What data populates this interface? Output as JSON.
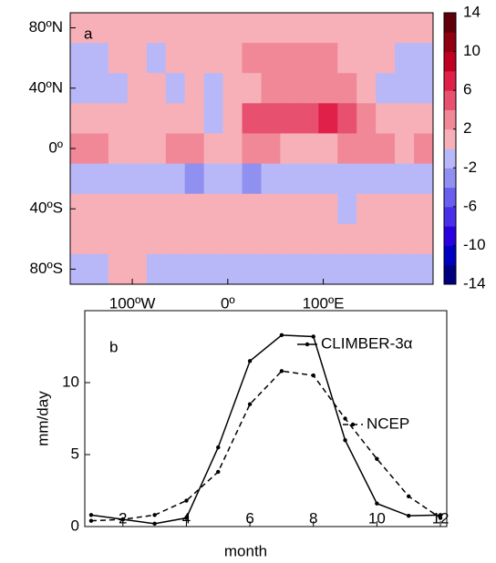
{
  "chart_data": [
    {
      "type": "heatmap",
      "annotation": "a",
      "xlim": [
        -165,
        215
      ],
      "ylim": [
        -90,
        90
      ],
      "xticks": [
        {
          "value": -100,
          "label": "100ºW"
        },
        {
          "value": 0,
          "label": "0º"
        },
        {
          "value": 100,
          "label": "100ºE"
        }
      ],
      "yticks": [
        {
          "value": 80,
          "label": "80ºN"
        },
        {
          "value": 40,
          "label": "40ºN"
        },
        {
          "value": 0,
          "label": "0º"
        },
        {
          "value": -40,
          "label": "40ºS"
        },
        {
          "value": -80,
          "label": "80ºS"
        }
      ],
      "x": [
        -155,
        -135,
        -115,
        -95,
        -75,
        -55,
        -35,
        -15,
        5,
        25,
        45,
        65,
        85,
        105,
        125,
        145,
        165,
        185,
        205
      ],
      "y": [
        80,
        60,
        40,
        20,
        0,
        -20,
        -40,
        -60,
        -80
      ],
      "z": [
        [
          1,
          1,
          1,
          1,
          1,
          1,
          1,
          1,
          1,
          1,
          1,
          1,
          1,
          1,
          1,
          1,
          1,
          1,
          1
        ],
        [
          -1,
          -1,
          1,
          1,
          -1,
          1,
          1,
          1,
          1,
          3,
          3,
          3,
          3,
          3,
          1,
          1,
          1,
          -1,
          -1
        ],
        [
          -1,
          -1,
          -1,
          1,
          1,
          -1,
          1,
          -1,
          1,
          1,
          3,
          3,
          3,
          3,
          3,
          1,
          -1,
          -1,
          -1
        ],
        [
          1,
          1,
          1,
          1,
          1,
          1,
          1,
          -1,
          1,
          5,
          5,
          5,
          5,
          7,
          5,
          3,
          1,
          1,
          1
        ],
        [
          3,
          3,
          1,
          1,
          1,
          3,
          3,
          1,
          1,
          3,
          3,
          1,
          1,
          1,
          3,
          3,
          3,
          1,
          3
        ],
        [
          -1,
          -1,
          -1,
          -1,
          -1,
          -1,
          -3,
          -1,
          -1,
          -3,
          -1,
          -1,
          -1,
          -1,
          -1,
          -1,
          -1,
          -1,
          -1
        ],
        [
          1,
          1,
          1,
          1,
          1,
          1,
          1,
          1,
          1,
          1,
          1,
          1,
          1,
          1,
          -1,
          1,
          1,
          1,
          1
        ],
        [
          1,
          1,
          1,
          1,
          1,
          1,
          1,
          1,
          1,
          1,
          1,
          1,
          1,
          1,
          1,
          1,
          1,
          1,
          1
        ],
        [
          -1,
          -1,
          1,
          1,
          -1,
          -1,
          -1,
          -1,
          -1,
          -1,
          -1,
          -1,
          -1,
          -1,
          -1,
          -1,
          -1,
          -1,
          -1
        ]
      ],
      "clim": [
        -14,
        14
      ],
      "cticks": [
        -14,
        -10,
        -6,
        -2,
        2,
        6,
        10,
        14
      ],
      "colors": [
        "#00007f",
        "#0000c0",
        "#2a00e0",
        "#4a2ee8",
        "#6a5ef0",
        "#9090f0",
        "#b8b8f8",
        "#f8b0b8",
        "#f08898",
        "#e85070",
        "#e02048",
        "#c00020",
        "#900010",
        "#600008"
      ]
    },
    {
      "type": "line",
      "annotation": "b",
      "xlabel": "month",
      "ylabel": "mm/day",
      "x": [
        1,
        2,
        3,
        4,
        5,
        6,
        7,
        8,
        9,
        10,
        11,
        12
      ],
      "xlim": [
        0.8,
        12.2
      ],
      "ylim": [
        0,
        15
      ],
      "xticks": [
        2,
        4,
        6,
        8,
        10,
        12
      ],
      "yticks": [
        0,
        5,
        10
      ],
      "series": [
        {
          "name": "CLIMBER-3α",
          "color": "#000000",
          "dash": false,
          "values": [
            0.8,
            0.5,
            0.2,
            0.6,
            5.5,
            11.5,
            13.3,
            13.2,
            6,
            1.6,
            0.75,
            0.8
          ]
        },
        {
          "name": "NCEP",
          "color": "#000000",
          "dash": true,
          "values": [
            0.4,
            0.5,
            0.8,
            1.8,
            3.8,
            8.5,
            10.8,
            10.5,
            7.5,
            4.7,
            2.1,
            0.6
          ]
        }
      ]
    }
  ]
}
